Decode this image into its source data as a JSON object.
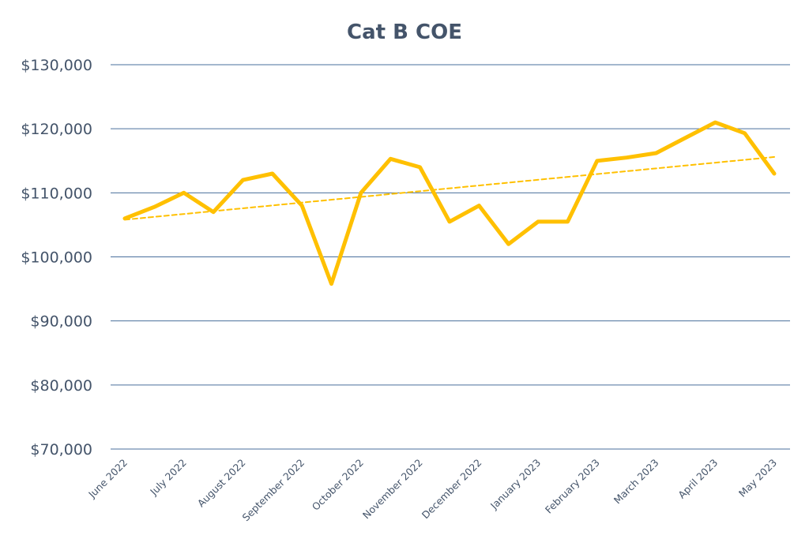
{
  "chart_data": {
    "type": "line",
    "title": "Cat B COE",
    "xlabel": "",
    "ylabel": "",
    "ylim": [
      70000,
      130000
    ],
    "y_ticks": [
      70000,
      80000,
      90000,
      100000,
      110000,
      120000,
      130000
    ],
    "y_tick_labels": [
      "$70,000",
      "$80,000",
      "$90,000",
      "$100,000",
      "$110,000",
      "$120,000",
      "$130,000"
    ],
    "x_tick_labels": [
      "June 2022",
      "July 2022",
      "August 2022",
      "September 2022",
      "October 2022",
      "November 2022",
      "December 2022",
      "January 2023",
      "February 2023",
      "March 2023",
      "April 2023",
      "May 2023"
    ],
    "grid": true,
    "legend": "none",
    "series": [
      {
        "style": "solid",
        "color": "#ffc000",
        "values": [
          106000,
          107800,
          110000,
          107000,
          112000,
          113000,
          108000,
          95800,
          110000,
          115300,
          114000,
          105500,
          108000,
          102000,
          105500,
          105500,
          115000,
          115500,
          116200,
          118600,
          121000,
          119300,
          113000
        ]
      },
      {
        "style": "dashed",
        "color": "#ffc000",
        "values": [
          105800,
          115600
        ]
      }
    ],
    "colors": {
      "gridline": "#4a6f9c",
      "text": "#44546a",
      "line": "#ffc000"
    }
  }
}
